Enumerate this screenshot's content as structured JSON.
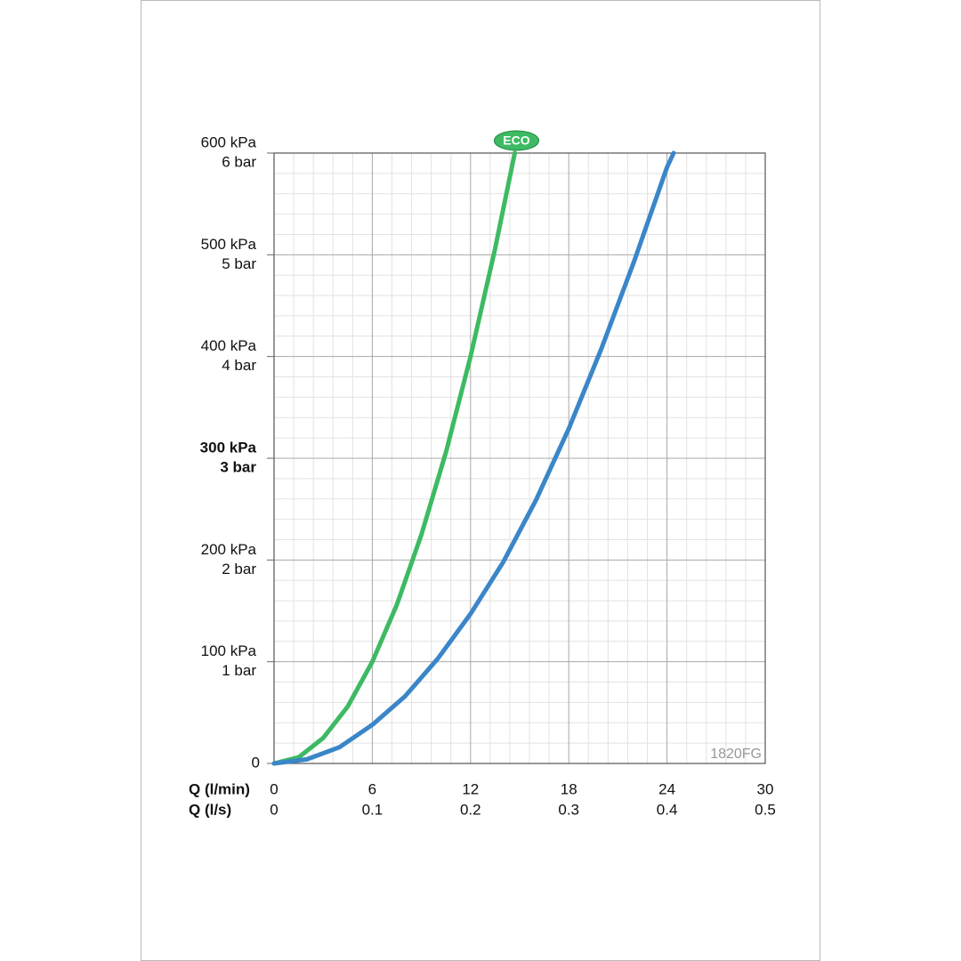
{
  "chart_data": {
    "type": "line",
    "series": [
      {
        "name": "ECO",
        "color": "#3dba63",
        "x": [
          0,
          1.5,
          3,
          4.5,
          6,
          7.5,
          9,
          10.5,
          12,
          13.5,
          14.7
        ],
        "values": [
          0,
          6,
          25,
          56,
          100,
          156,
          225,
          306,
          400,
          506,
          600
        ]
      },
      {
        "color": "#3a86c8",
        "x": [
          0,
          2,
          4,
          6,
          8,
          10,
          12,
          14,
          16,
          18,
          20,
          22,
          24,
          24.4
        ],
        "values": [
          0,
          4,
          16,
          38,
          66,
          103,
          147,
          198,
          259,
          329,
          408,
          494,
          586,
          600
        ]
      }
    ],
    "xlabel": "Q (l/min)",
    "xlim": [
      0,
      30
    ],
    "xticks": [
      0,
      6,
      12,
      18,
      24,
      30
    ],
    "x2label": "Q (l/s)",
    "x2lim": [
      0,
      0.5
    ],
    "x2ticks": [
      0,
      0.1,
      0.2,
      0.3,
      0.4,
      0.5
    ],
    "ylim": [
      0,
      600
    ],
    "yticks": [
      0,
      {
        "value": 100,
        "label": "100 kPa",
        "label2": "1 bar"
      },
      {
        "value": 200,
        "label": "200 kPa",
        "label2": "2 bar"
      },
      {
        "value": 300,
        "label": "300 kPa",
        "label2": "3 bar"
      },
      {
        "value": 400,
        "label": "400 kPa",
        "label2": "4 bar"
      },
      {
        "value": 500,
        "label": "500 kPa",
        "label2": "5 bar"
      },
      {
        "value": 600,
        "label": "600 kPa",
        "label2": "6 bar"
      }
    ],
    "highlight_ytick": 300,
    "grid": true,
    "minor_grid_divisions": 5,
    "annotation": "1820FG"
  }
}
